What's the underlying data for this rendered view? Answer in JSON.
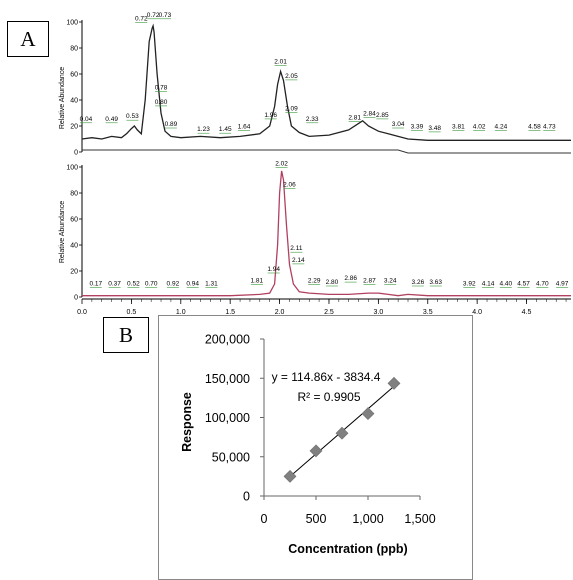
{
  "panel_labels": {
    "a": "A",
    "b": "B"
  },
  "colors": {
    "trace_a": "#222222",
    "trace_b": "#b04060",
    "annotation_leader": "#3a9a3a",
    "marker": "#808080",
    "fit_line": "#000000"
  },
  "chart_data": [
    {
      "type": "line",
      "panel": "A",
      "ylabel": "Relative Abundance",
      "x_ticks": [
        0.0,
        0.5,
        1.0,
        1.5,
        2.0,
        2.5,
        3.0,
        3.5,
        4.0,
        4.5
      ],
      "x_tick_labels": [
        "0.0",
        "0.5",
        "1.0",
        "1.5",
        "2.0",
        "2.5",
        "3.0",
        "3.5",
        "4.0",
        "4.5"
      ],
      "xlim": [
        0.0,
        4.95
      ],
      "y_ticks": [
        0,
        20,
        40,
        60,
        80,
        100
      ],
      "y_tick_labels": [
        "0",
        "20",
        "40",
        "60",
        "80",
        "100"
      ],
      "ylim": [
        0,
        100
      ],
      "series": [
        {
          "x": [
            0.0,
            0.1,
            0.2,
            0.3,
            0.4,
            0.45,
            0.5,
            0.53,
            0.56,
            0.6,
            0.64,
            0.68,
            0.71,
            0.72,
            0.73,
            0.76,
            0.8,
            0.84,
            0.9,
            1.0,
            1.2,
            1.4,
            1.6,
            1.8,
            1.9,
            1.95,
            1.98,
            2.01,
            2.04,
            2.08,
            2.12,
            2.2,
            2.3,
            2.5,
            2.7,
            2.8,
            2.84,
            2.9,
            3.0,
            3.1,
            3.2,
            3.3,
            3.5,
            4.0,
            4.5,
            4.95
          ],
          "y": [
            10,
            11,
            10,
            12,
            11,
            14,
            18,
            20,
            17,
            14,
            40,
            85,
            95,
            97,
            92,
            60,
            30,
            16,
            12,
            11,
            12,
            11,
            12,
            14,
            20,
            35,
            52,
            62,
            55,
            35,
            20,
            15,
            12,
            13,
            17,
            22,
            24,
            20,
            16,
            14,
            12,
            10,
            9,
            9,
            9,
            9
          ]
        }
      ],
      "baseline": {
        "x": [
          0.0,
          3.2,
          3.3,
          4.95
        ],
        "y": [
          3,
          3,
          0,
          0
        ]
      },
      "peak_labels": [
        {
          "text": "0.04",
          "x": 0.04,
          "y": 24
        },
        {
          "text": "0.49",
          "x": 0.3,
          "y": 24
        },
        {
          "text": "0.53",
          "x": 0.51,
          "y": 26
        },
        {
          "text": "0.72",
          "x": 0.6,
          "y": 101
        },
        {
          "text": "0.72",
          "x": 0.72,
          "y": 104
        },
        {
          "text": "0.73",
          "x": 0.84,
          "y": 104
        },
        {
          "text": "0.78",
          "x": 0.8,
          "y": 48
        },
        {
          "text": "0.80",
          "x": 0.8,
          "y": 37
        },
        {
          "text": "0.89",
          "x": 0.9,
          "y": 20
        },
        {
          "text": "1.23",
          "x": 1.23,
          "y": 16
        },
        {
          "text": "1.45",
          "x": 1.45,
          "y": 16
        },
        {
          "text": "1.64",
          "x": 1.64,
          "y": 18
        },
        {
          "text": "1.96",
          "x": 1.91,
          "y": 27
        },
        {
          "text": "2.01",
          "x": 2.01,
          "y": 68
        },
        {
          "text": "2.05",
          "x": 2.12,
          "y": 57
        },
        {
          "text": "2.09",
          "x": 2.12,
          "y": 32
        },
        {
          "text": "2.33",
          "x": 2.33,
          "y": 24
        },
        {
          "text": "2.81",
          "x": 2.76,
          "y": 25
        },
        {
          "text": "2.84",
          "x": 2.91,
          "y": 28
        },
        {
          "text": "2.85",
          "x": 3.04,
          "y": 27
        },
        {
          "text": "3.04",
          "x": 3.2,
          "y": 20
        },
        {
          "text": "3.39",
          "x": 3.39,
          "y": 18
        },
        {
          "text": "3.48",
          "x": 3.57,
          "y": 17
        },
        {
          "text": "3.81",
          "x": 3.81,
          "y": 18
        },
        {
          "text": "4.02",
          "x": 4.02,
          "y": 18
        },
        {
          "text": "4.24",
          "x": 4.24,
          "y": 18
        },
        {
          "text": "4.58",
          "x": 4.58,
          "y": 18
        },
        {
          "text": "4.73",
          "x": 4.73,
          "y": 18
        }
      ]
    },
    {
      "type": "line",
      "panel": "A",
      "ylabel": "Relative Abundance",
      "x_ticks": [
        0.0,
        0.5,
        1.0,
        1.5,
        2.0,
        2.5,
        3.0,
        3.5,
        4.0,
        4.5
      ],
      "x_tick_labels": [
        "0.0",
        "0.5",
        "1.0",
        "1.5",
        "2.0",
        "2.5",
        "3.0",
        "3.5",
        "4.0",
        "4.5"
      ],
      "xlim": [
        0.0,
        4.95
      ],
      "y_ticks": [
        0,
        20,
        40,
        60,
        80,
        100
      ],
      "y_tick_labels": [
        "0",
        "20",
        "40",
        "60",
        "80",
        "100"
      ],
      "ylim": [
        0,
        100
      ],
      "series": [
        {
          "x": [
            0.0,
            0.5,
            1.0,
            1.5,
            1.8,
            1.9,
            1.95,
            1.98,
            2.0,
            2.02,
            2.04,
            2.07,
            2.1,
            2.14,
            2.2,
            2.3,
            2.5,
            2.7,
            2.9,
            3.0,
            3.1,
            3.2,
            3.3,
            3.5,
            4.0,
            4.5,
            4.95
          ],
          "y": [
            1,
            1,
            1,
            1,
            2,
            3,
            10,
            40,
            80,
            97,
            90,
            55,
            25,
            10,
            4,
            3,
            2,
            2,
            3,
            3,
            2,
            1,
            2,
            1,
            1,
            1,
            1
          ]
        }
      ],
      "peak_labels": [
        {
          "text": "0.17",
          "x": 0.14,
          "y": 9
        },
        {
          "text": "0.37",
          "x": 0.33,
          "y": 9
        },
        {
          "text": "0.52",
          "x": 0.52,
          "y": 9
        },
        {
          "text": "0.70",
          "x": 0.7,
          "y": 9
        },
        {
          "text": "0.92",
          "x": 0.92,
          "y": 9
        },
        {
          "text": "0.94",
          "x": 1.12,
          "y": 9
        },
        {
          "text": "1.31",
          "x": 1.31,
          "y": 9
        },
        {
          "text": "1.81",
          "x": 1.77,
          "y": 11
        },
        {
          "text": "1.94",
          "x": 1.94,
          "y": 20
        },
        {
          "text": "2.02",
          "x": 2.02,
          "y": 101
        },
        {
          "text": "2.06",
          "x": 2.1,
          "y": 85
        },
        {
          "text": "2.11",
          "x": 2.17,
          "y": 36
        },
        {
          "text": "2.14",
          "x": 2.19,
          "y": 27
        },
        {
          "text": "2.29",
          "x": 2.35,
          "y": 11
        },
        {
          "text": "2.80",
          "x": 2.53,
          "y": 10
        },
        {
          "text": "2.86",
          "x": 2.72,
          "y": 13
        },
        {
          "text": "2.87",
          "x": 2.91,
          "y": 11
        },
        {
          "text": "3.24",
          "x": 3.12,
          "y": 11
        },
        {
          "text": "3.26",
          "x": 3.4,
          "y": 10
        },
        {
          "text": "3.63",
          "x": 3.58,
          "y": 10
        },
        {
          "text": "3.92",
          "x": 3.92,
          "y": 9
        },
        {
          "text": "4.14",
          "x": 4.11,
          "y": 9
        },
        {
          "text": "4.40",
          "x": 4.29,
          "y": 9
        },
        {
          "text": "4.57",
          "x": 4.47,
          "y": 9
        },
        {
          "text": "4.70",
          "x": 4.66,
          "y": 9
        },
        {
          "text": "4.97",
          "x": 4.86,
          "y": 9
        }
      ]
    },
    {
      "type": "scatter",
      "panel": "B",
      "xlabel": "Concentration (ppb)",
      "ylabel": "Response",
      "xlim": [
        0,
        1500
      ],
      "ylim": [
        0,
        200000
      ],
      "x_ticks": [
        0,
        500,
        1000,
        1500
      ],
      "x_tick_labels": [
        "0",
        "500",
        "1,000",
        "1,500"
      ],
      "y_ticks": [
        0,
        50000,
        100000,
        150000,
        200000
      ],
      "y_tick_labels": [
        "0",
        "50,000",
        "100,000",
        "150,000",
        "200,000"
      ],
      "grid": false,
      "series": [
        {
          "x": [
            250,
            500,
            750,
            1000,
            1250
          ],
          "y": [
            25000,
            57500,
            80000,
            105000,
            143500
          ]
        }
      ],
      "trendline": {
        "slope": 114.86,
        "intercept": -3834.4,
        "x_range": [
          250,
          1250
        ]
      },
      "annotations": [
        "y = 114.86x - 3834.4",
        "R² = 0.9905"
      ]
    }
  ]
}
